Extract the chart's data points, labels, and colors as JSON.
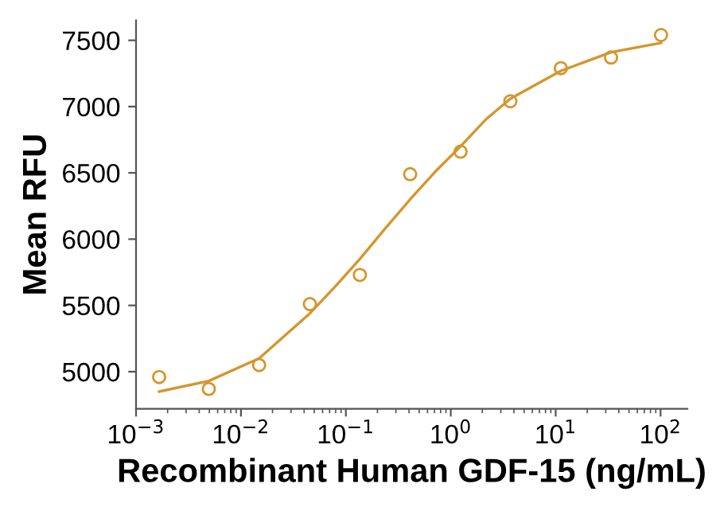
{
  "chart_data": {
    "type": "scatter",
    "xlabel": "Recombinant Human GDF-15 (ng/mL)",
    "ylabel": "Mean RFU",
    "log": "x",
    "grid": false,
    "xlim": [
      0.001,
      180
    ],
    "ylim": [
      4720,
      7650
    ],
    "xticks": [
      {
        "value": 0.001,
        "label": "10$^{−3}$"
      },
      {
        "value": 0.01,
        "label": "10$^{−2}$"
      },
      {
        "value": 0.1,
        "label": "10$^{−1}$"
      },
      {
        "value": 1,
        "label": "10$^{0}$"
      },
      {
        "value": 10,
        "label": "10$^{1}$"
      },
      {
        "value": 100,
        "label": "10$^{2}$"
      }
    ],
    "yticks": [
      5000,
      5500,
      6000,
      6500,
      7000,
      7500
    ],
    "series": [
      {
        "marker": "circle",
        "color": "#d4962c",
        "x": [
          0.00166,
          0.00494,
          0.0149,
          0.0454,
          0.136,
          0.41,
          1.24,
          3.7,
          11.2,
          33.7,
          101
        ],
        "values": [
          4960,
          4870,
          5050,
          5510,
          5730,
          6490,
          6660,
          7040,
          7290,
          7370,
          7540
        ]
      },
      {
        "type": "line",
        "marker": "none",
        "line_style": "solid",
        "color": "#d4962c",
        "x": [
          0.00166,
          0.00494,
          0.0149,
          0.0454,
          0.0787,
          0.136,
          0.237,
          0.41,
          0.713,
          1.24,
          2.14,
          3.7,
          11.2,
          33.7,
          101
        ],
        "values": [
          4850,
          4930,
          5100,
          5440,
          5640,
          5850,
          6080,
          6300,
          6510,
          6700,
          6900,
          7060,
          7270,
          7410,
          7480
        ]
      }
    ]
  }
}
